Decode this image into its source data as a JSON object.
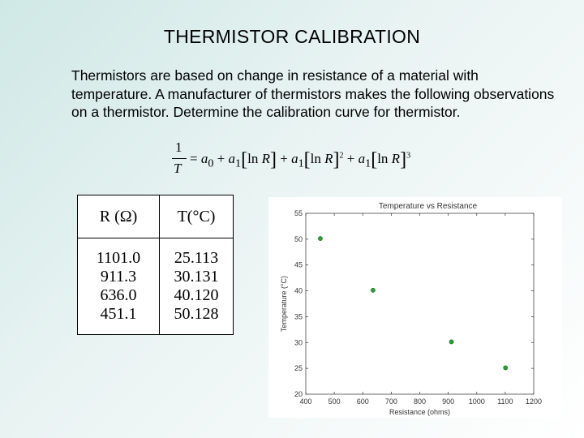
{
  "slide": {
    "title": "THERMISTOR CALIBRATION",
    "paragraph": "Thermistors are based on change in resistance of a material with temperature. A manufacturer of thermistors makes the following observations on a thermistor. Determine the calibration curve for thermistor."
  },
  "equation": {
    "numerator": "1",
    "denominator": "T",
    "rhs_text": "= a0 + a1[ln R] + a1[ln R]2 + a1[ln R]3"
  },
  "table": {
    "headers": [
      "R (Ω)",
      "T(°C)"
    ],
    "resistance": [
      "1101.0",
      "911.3",
      "636.0",
      "451.1"
    ],
    "temperature": [
      "25.113",
      "30.131",
      "40.120",
      "50.128"
    ]
  },
  "chart_data": {
    "type": "scatter",
    "title": "Temperature vs Resistance",
    "xlabel": "Resistance (ohms)",
    "ylabel": "Temperature (°C)",
    "xlim": [
      400,
      1200
    ],
    "ylim": [
      20,
      55
    ],
    "xticks": [
      "400",
      "500",
      "600",
      "700",
      "800",
      "900",
      "1000",
      "1100",
      "1200"
    ],
    "yticks": [
      "20",
      "25",
      "30",
      "35",
      "40",
      "45",
      "50",
      "55"
    ],
    "x": [
      1101.0,
      911.3,
      636.0,
      451.1
    ],
    "y": [
      25.113,
      30.131,
      40.12,
      50.128
    ],
    "marker_color": "#2e9e3a"
  }
}
